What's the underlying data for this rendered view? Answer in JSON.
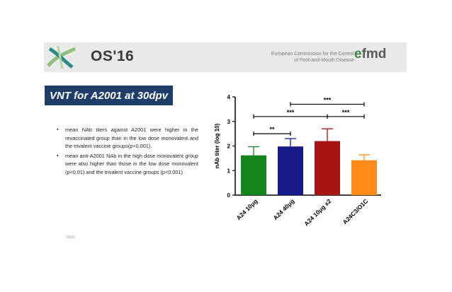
{
  "header": {
    "title": "OS'16",
    "commission_lines": [
      "European Commission for the Control",
      "of Foot-and-Mouth Disease"
    ],
    "brand_prefix": "e",
    "brand_suffix": "fmd"
  },
  "slide_title": "VNT for A2001 at 30dpv",
  "bullets": [
    "mean NAb titers against A2001 were higher in the revaccinated group than in the low dose monovalent and the trivalent vaccine groups(p<0.001).",
    "mean anti-A2001 NAb in the high dose monovalent group were also higher than those in the low dose monovalent (p<0.01) and the trivalent vaccine groups (p<0.001)"
  ],
  "bullet_symbol": "▪",
  "footer": "OS16",
  "colors": {
    "title_bg": "#1f3d69",
    "bars": [
      "#14851c",
      "#161a8a",
      "#a81414",
      "#ff8c1a"
    ]
  },
  "chart_data": {
    "type": "bar",
    "categories": [
      "A24 10μg",
      "A24 40μg",
      "A24 10μg x2",
      "A24C3/O1C"
    ],
    "values": [
      1.62,
      1.98,
      2.2,
      1.42
    ],
    "errors": [
      0.35,
      0.32,
      0.5,
      0.22
    ],
    "ylabel": "nAb titer (log 10)",
    "ylim": [
      0,
      4
    ],
    "yticks": [
      0,
      1,
      2,
      3,
      4
    ],
    "grid": false,
    "significance": [
      {
        "from": 0,
        "to": 1,
        "y": 2.5,
        "label": "**"
      },
      {
        "from": 0,
        "to": 2,
        "y": 3.2,
        "label": "***"
      },
      {
        "from": 2,
        "to": 3,
        "y": 3.2,
        "label": "***"
      },
      {
        "from": 1,
        "to": 3,
        "y": 3.7,
        "label": "***"
      }
    ]
  }
}
